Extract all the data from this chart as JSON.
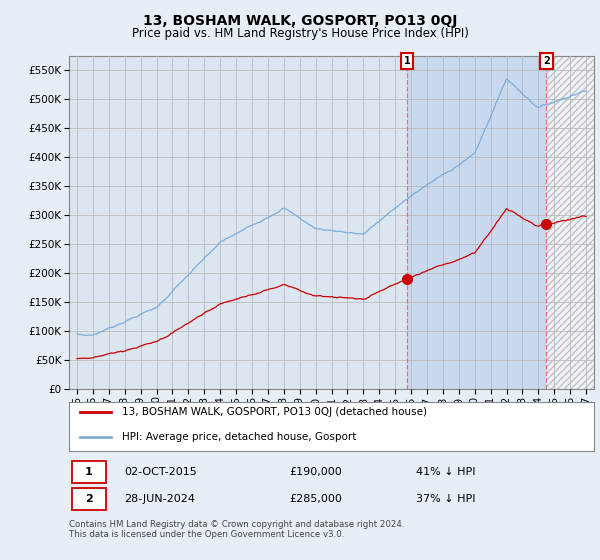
{
  "title": "13, BOSHAM WALK, GOSPORT, PO13 0QJ",
  "subtitle": "Price paid vs. HM Land Registry's House Price Index (HPI)",
  "hpi_color": "#7aaedc",
  "price_color": "#cc0000",
  "bg_color": "#e8eef5",
  "plot_bg": "#dce6f0",
  "highlight_bg": "#c8d8ee",
  "grid_color": "#bbbbbb",
  "ylim": [
    0,
    575000
  ],
  "yticks": [
    0,
    50000,
    100000,
    150000,
    200000,
    250000,
    300000,
    350000,
    400000,
    450000,
    500000,
    550000
  ],
  "sale1_year": 2015.75,
  "sale2_year": 2024.5,
  "sale1_date": "02-OCT-2015",
  "sale1_price": 190000,
  "sale1_pct": "41%",
  "sale2_date": "28-JUN-2024",
  "sale2_price": 285000,
  "sale2_pct": "37%",
  "legend_label1": "13, BOSHAM WALK, GOSPORT, PO13 0QJ (detached house)",
  "legend_label2": "HPI: Average price, detached house, Gosport",
  "footnote": "Contains HM Land Registry data © Crown copyright and database right 2024.\nThis data is licensed under the Open Government Licence v3.0."
}
